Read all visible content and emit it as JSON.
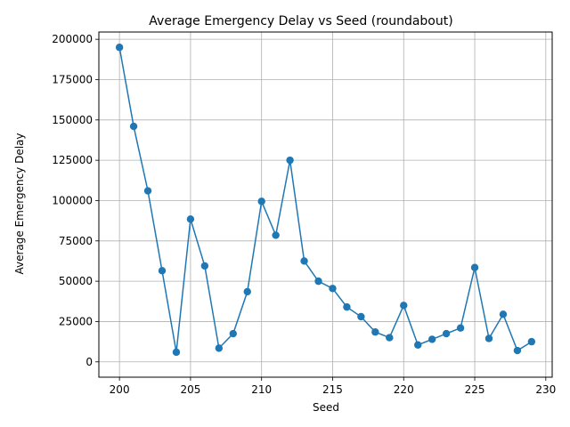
{
  "chart_data": {
    "type": "line",
    "title": "Average Emergency Delay vs Seed (roundabout)",
    "xlabel": "Seed",
    "ylabel": "Average Emergency Delay",
    "xlim": [
      198.55,
      230.45
    ],
    "ylim": [
      -9500,
      204500
    ],
    "xticks": [
      200,
      205,
      210,
      215,
      220,
      225,
      230
    ],
    "xtick_labels": [
      "200",
      "205",
      "210",
      "215",
      "220",
      "225",
      "230"
    ],
    "yticks": [
      0,
      25000,
      50000,
      75000,
      100000,
      125000,
      150000,
      175000,
      200000
    ],
    "ytick_labels": [
      "0",
      "25000",
      "50000",
      "75000",
      "100000",
      "125000",
      "150000",
      "175000",
      "200000"
    ],
    "grid": true,
    "marker": "circle",
    "color": "#1f77b4",
    "x": [
      200,
      201,
      202,
      203,
      204,
      205,
      206,
      207,
      208,
      209,
      210,
      211,
      212,
      213,
      214,
      215,
      216,
      217,
      218,
      219,
      220,
      221,
      222,
      223,
      224,
      225,
      226,
      227,
      228,
      229
    ],
    "y": [
      195000,
      146000,
      106000,
      56500,
      6000,
      88500,
      59500,
      8500,
      17500,
      43500,
      99500,
      78500,
      125000,
      62500,
      50000,
      45500,
      34000,
      28000,
      18500,
      15000,
      35000,
      10500,
      14000,
      17500,
      21000,
      58500,
      14500,
      29500,
      7000,
      12500
    ]
  }
}
